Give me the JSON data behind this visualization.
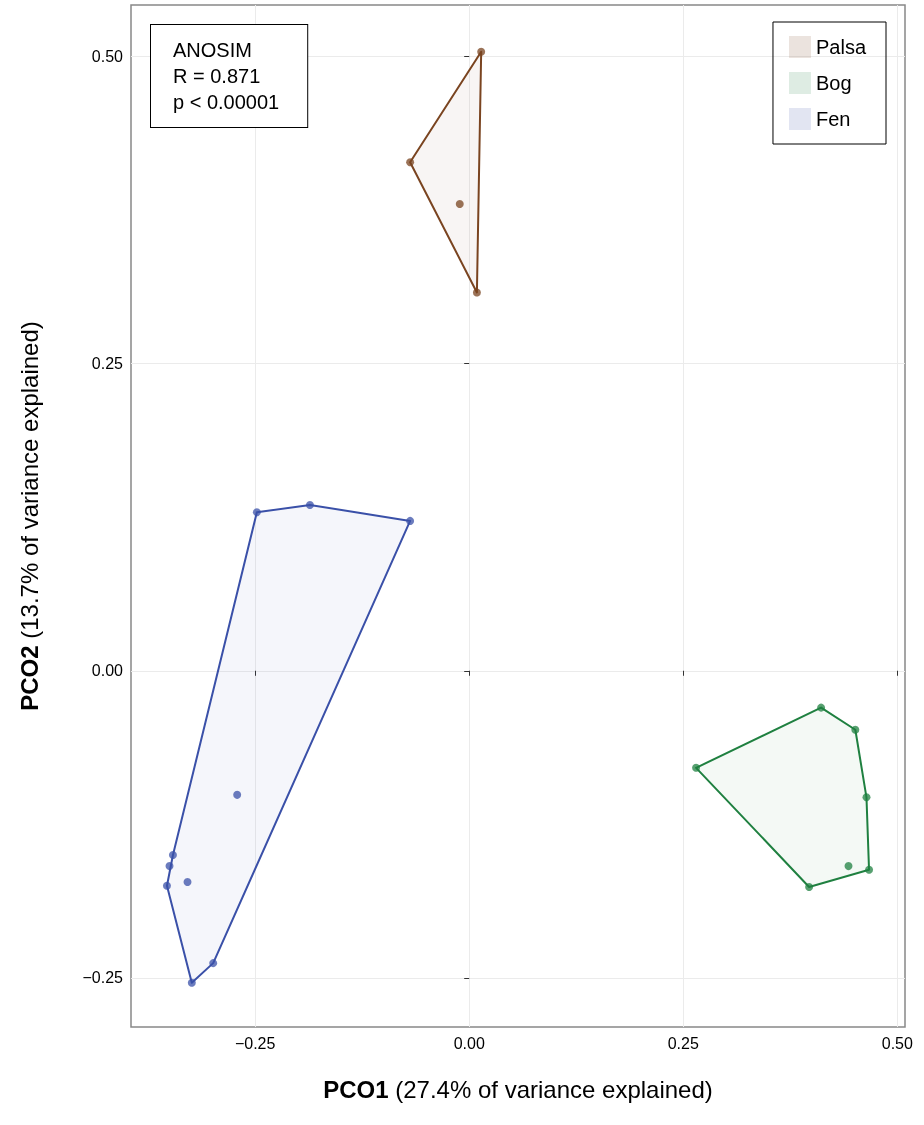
{
  "chart_data": {
    "type": "scatter",
    "xlabel": "PCO1 (27.4% of variance explained)",
    "ylabel": "PCO2 (13.7% of variance explained)",
    "annotations": [
      "ANOSIM",
      "R = 0.871",
      "p < 0.00001"
    ],
    "xlim": [
      -0.395,
      0.509
    ],
    "ylim": [
      -0.29,
      0.542
    ],
    "xticks": [
      {
        "value": -0.25,
        "label": "−0.25"
      },
      {
        "value": 0,
        "label": "0.00"
      },
      {
        "value": 0.25,
        "label": "0.25"
      },
      {
        "value": 0.5,
        "label": "0.50"
      }
    ],
    "yticks": [
      {
        "value": -0.25,
        "label": "−0.25"
      },
      {
        "value": 0,
        "label": "0.00"
      },
      {
        "value": 0.25,
        "label": "0.25"
      },
      {
        "value": 0.5,
        "label": "0.50"
      }
    ],
    "grid": true,
    "legend": "top right",
    "series": [
      {
        "name": "Palsa",
        "marker": "circle",
        "color": "#7a4420",
        "x": [
          0.014,
          -0.069,
          -0.011,
          0.009
        ],
        "values": [
          0.504,
          0.414,
          0.38,
          0.308
        ]
      },
      {
        "name": "Bog",
        "marker": "circle",
        "color": "#1f8040",
        "x": [
          0.265,
          0.411,
          0.451,
          0.464,
          0.467,
          0.443,
          0.397
        ],
        "values": [
          -0.079,
          -0.03,
          -0.048,
          -0.103,
          -0.162,
          -0.159,
          -0.176
        ]
      },
      {
        "name": "Fen",
        "marker": "circle",
        "color": "#3a50a8",
        "x": [
          -0.248,
          -0.186,
          -0.069,
          -0.271,
          -0.299,
          -0.324,
          -0.353,
          -0.35,
          -0.346,
          -0.329
        ],
        "values": [
          0.129,
          0.135,
          0.122,
          -0.101,
          -0.238,
          -0.254,
          -0.175,
          -0.159,
          -0.15,
          -0.172
        ]
      },
      {
        "type": "area",
        "marker": "none",
        "color": "#7a4420",
        "x": [
          0.014,
          -0.069,
          0.009,
          0.014
        ],
        "values": [
          0.504,
          0.414,
          0.308,
          0.504
        ]
      },
      {
        "type": "area",
        "marker": "none",
        "color": "#1f8040",
        "x": [
          0.265,
          0.411,
          0.451,
          0.464,
          0.467,
          0.397,
          0.265
        ],
        "values": [
          -0.079,
          -0.03,
          -0.048,
          -0.103,
          -0.162,
          -0.176,
          -0.079
        ]
      },
      {
        "type": "area",
        "marker": "none",
        "color": "#3a50a8",
        "x": [
          -0.248,
          -0.186,
          -0.069,
          -0.299,
          -0.324,
          -0.353,
          -0.346,
          -0.248
        ],
        "values": [
          0.129,
          0.135,
          0.122,
          -0.238,
          -0.254,
          -0.175,
          -0.15,
          0.129
        ]
      }
    ]
  }
}
